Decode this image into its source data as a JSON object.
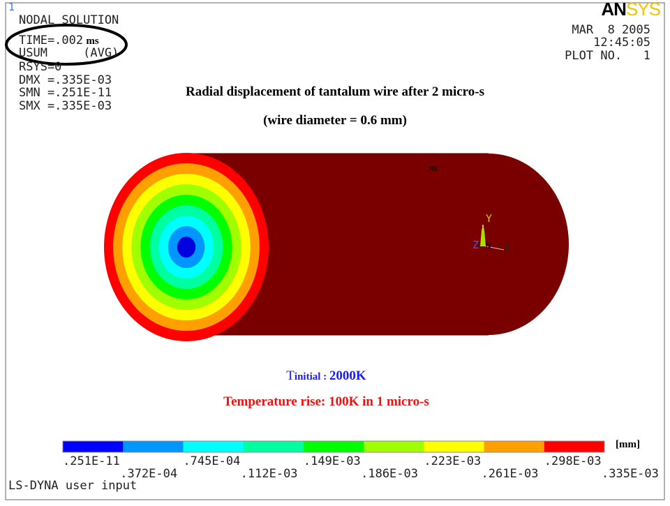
{
  "window_number": "1",
  "info": {
    "line1": "NODAL SOLUTION",
    "time_prefix": "TIME=.002",
    "time_unit": "ms",
    "line3": "USUM     (AVG)",
    "line4": "RSYS=0",
    "line5": "DMX =.335E-03",
    "line6": "SMN =.251E-11",
    "line7": "SMX =.335E-03"
  },
  "logo": {
    "part1": "AN",
    "part2": "SYS",
    "color1": "#000000",
    "color2": "#f2c400"
  },
  "date": "MAR  8 2005",
  "time": "12:45:05",
  "plot_no": "PLOT NO.   1",
  "title_line1": "Radial displacement of tantalum wire after 2 micro-s",
  "title_line2": "(wire diameter = 0.6 mm)",
  "mx_label": "MX",
  "axes": {
    "y": "Y",
    "z": "Z",
    "n": "N",
    "x": "X"
  },
  "tinitial": {
    "prefix": "T",
    "rest": "initial : ",
    "value": "2000K"
  },
  "temperature_rise": "Temperature rise: 100K in 1 micro-s",
  "legend": {
    "unit": "[mm]",
    "colors": [
      "#0000ff",
      "#0096ff",
      "#00ffff",
      "#00ffa0",
      "#00ff00",
      "#a0ff00",
      "#ffff00",
      "#ffa000",
      "#ff0000"
    ],
    "labels_top": [
      ".251E-11",
      ".745E-04",
      ".149E-03",
      ".223E-03",
      ".298E-03"
    ],
    "labels_bottom": [
      ".372E-04",
      ".112E-03",
      ".186E-03",
      ".261E-03",
      ".335E-03"
    ]
  },
  "footer": "LS-DYNA user input",
  "wire_body_color": "#7a0000"
}
